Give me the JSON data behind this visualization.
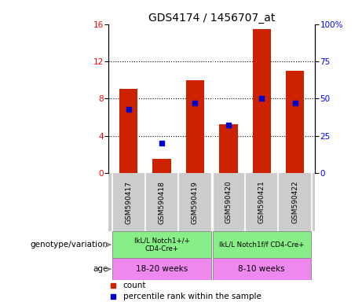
{
  "title": "GDS4174 / 1456707_at",
  "samples": [
    "GSM590417",
    "GSM590418",
    "GSM590419",
    "GSM590420",
    "GSM590421",
    "GSM590422"
  ],
  "counts": [
    9.0,
    1.5,
    10.0,
    5.2,
    15.5,
    11.0
  ],
  "percentile_ranks": [
    43,
    20,
    47,
    32,
    50,
    47
  ],
  "left_ylim": [
    0,
    16
  ],
  "left_yticks": [
    0,
    4,
    8,
    12,
    16
  ],
  "right_ylim": [
    0,
    100
  ],
  "right_yticks": [
    0,
    25,
    50,
    75,
    100
  ],
  "bar_color": "#cc2200",
  "dot_color": "#0000cc",
  "group1_label": "IkL/L Notch1+/+\nCD4-Cre+",
  "group2_label": "IkL/L Notch1f/f CD4-Cre+",
  "age1_label": "18-20 weeks",
  "age2_label": "8-10 weeks",
  "group1_color": "#88ee88",
  "group2_color": "#88ee88",
  "age1_color": "#ee88ee",
  "age2_color": "#ee88ee",
  "genotype_label": "genotype/variation",
  "age_label": "age",
  "sample_bg_color": "#cccccc",
  "legend_count_label": "count",
  "legend_pct_label": "percentile rank within the sample",
  "title_fontsize": 10,
  "tick_fontsize": 7.5,
  "anno_fontsize": 7.5,
  "sample_fontsize": 6.5
}
